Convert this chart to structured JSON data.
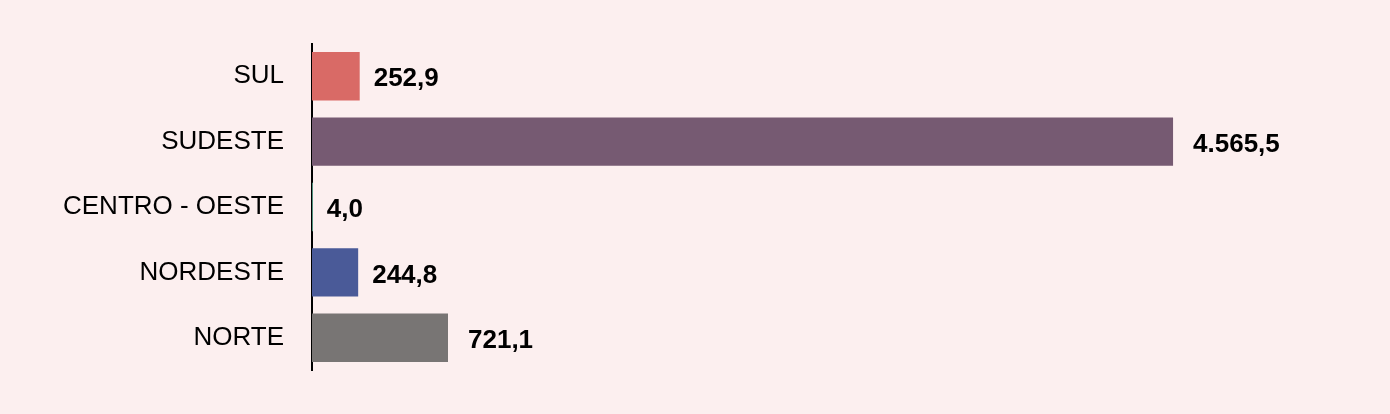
{
  "chart_data": {
    "type": "bar",
    "orientation": "horizontal",
    "categories": [
      "SUL",
      "SUDESTE",
      "CENTRO - OESTE",
      "NORDESTE",
      "NORTE"
    ],
    "values": [
      252.9,
      4565.5,
      4.0,
      244.8,
      721.1
    ],
    "value_labels": [
      "252,9",
      "4.565,5",
      "4,0",
      "244,8",
      "721,1"
    ],
    "colors": [
      "#d96a66",
      "#765a72",
      "#6bbfa6",
      "#4a5a98",
      "#787574"
    ],
    "tick_labels": "y",
    "legend": false
  }
}
